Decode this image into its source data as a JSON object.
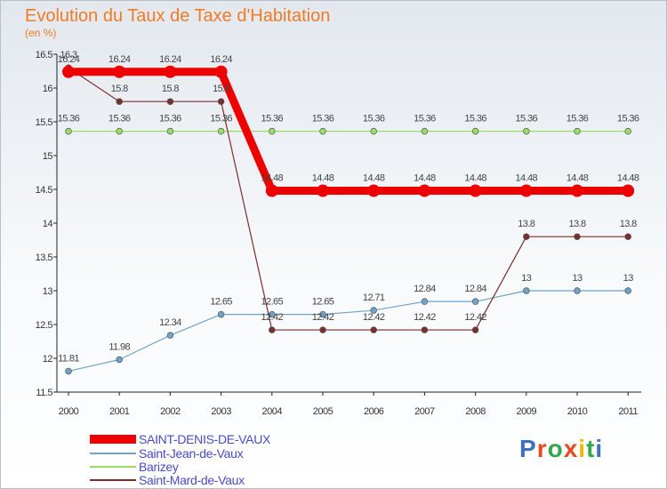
{
  "header": {
    "title": "Evolution du Taux de Taxe d'Habitation",
    "subtitle": "(en %)"
  },
  "logo": {
    "text": "Proxiti",
    "letter_colors": [
      "#3d6fc4",
      "#e8491f",
      "#33a84a",
      "#e8491f",
      "#f2b800",
      "#33a84a",
      "#3d6fc4"
    ]
  },
  "chart_data": {
    "type": "line",
    "title": "Evolution du Taux de Taxe d'Habitation",
    "subtitle": "(en %)",
    "x": [
      "2000",
      "2001",
      "2002",
      "2003",
      "2004",
      "2005",
      "2006",
      "2007",
      "2008",
      "2009",
      "2010",
      "2011"
    ],
    "ylim": [
      11.5,
      16.5
    ],
    "yticks": [
      "11.5",
      "12",
      "12.5",
      "13",
      "13.5",
      "14",
      "14.5",
      "15",
      "15.5",
      "16",
      "16.5"
    ],
    "grid": false,
    "legend_position": "bottom-left",
    "series": [
      {
        "name": "SAINT-DENIS-DE-VAUX",
        "color": "#ee0000",
        "values": [
          16.24,
          16.24,
          16.24,
          16.24,
          14.48,
          14.48,
          14.48,
          14.48,
          14.48,
          14.48,
          14.48,
          14.48
        ],
        "labels": [
          "16.24",
          "16.24",
          "16.24",
          "16.24",
          "14.48",
          "14.48",
          "14.48",
          "14.48",
          "14.48",
          "14.48",
          "14.48",
          "14.48"
        ]
      },
      {
        "name": "Saint-Jean-de-Vaux",
        "color": "#6fa3cc",
        "values": [
          11.81,
          11.98,
          12.34,
          12.65,
          12.65,
          12.65,
          12.71,
          12.84,
          12.84,
          13,
          13,
          13
        ],
        "labels": [
          "11.81",
          "11.98",
          "12.34",
          "12.65",
          "12.65",
          "12.65",
          "12.71",
          "12.84",
          "12.84",
          "13",
          "13",
          "13"
        ]
      },
      {
        "name": "Barizey",
        "color": "#99dd66",
        "values": [
          15.36,
          15.36,
          15.36,
          15.36,
          15.36,
          15.36,
          15.36,
          15.36,
          15.36,
          15.36,
          15.36,
          15.36
        ],
        "labels": [
          "15.36",
          "15.36",
          "15.36",
          "15.36",
          "15.36",
          "15.36",
          "15.36",
          "15.36",
          "15.36",
          "15.36",
          "15.36",
          "15.36"
        ]
      },
      {
        "name": "Saint-Mard-de-Vaux",
        "color": "#7a2e2e",
        "values": [
          16.3,
          15.8,
          15.8,
          15.8,
          12.42,
          12.42,
          12.42,
          12.42,
          12.42,
          13.8,
          13.8,
          13.8
        ],
        "labels": [
          "16.3",
          "15.8",
          "15.8",
          "15.8",
          "12.42",
          "12.42",
          "12.42",
          "12.42",
          "12.42",
          "13.8",
          "13.8",
          "13.8"
        ]
      }
    ]
  }
}
